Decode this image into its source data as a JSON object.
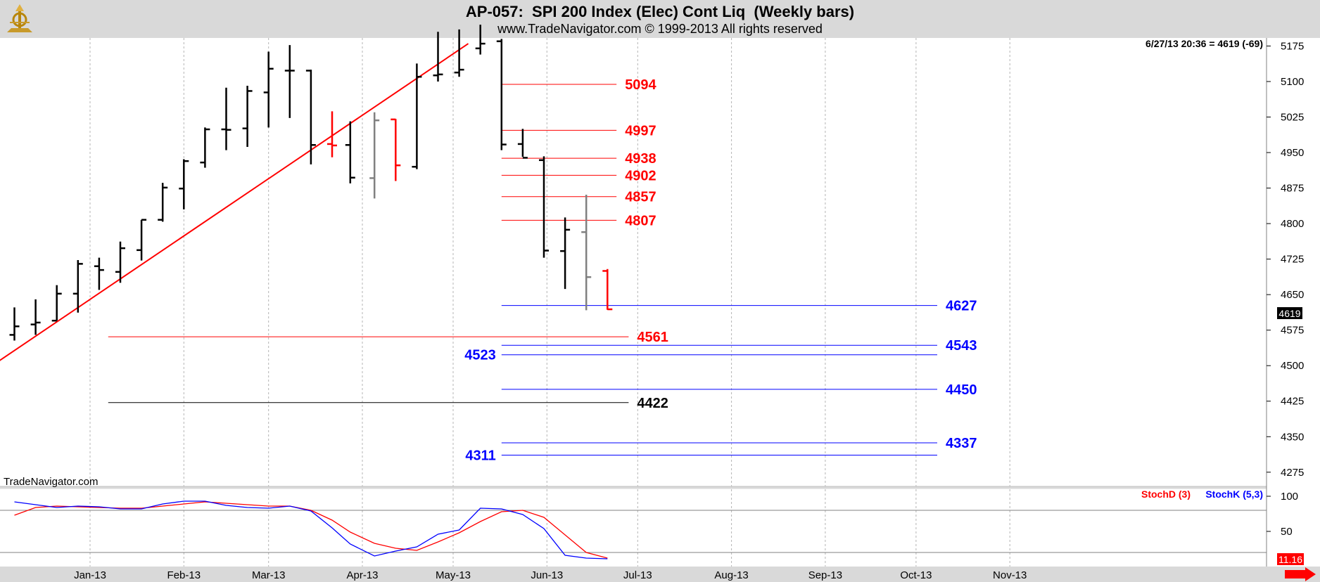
{
  "header": {
    "title": "AP-057:  SPI 200 Index (Elec) Cont Liq  (Weekly bars)",
    "subtitle": "www.TradeNavigator.com © 1999-2013 All rights reserved"
  },
  "watermark": "TradeNavigator.com",
  "last_quote": "6/27/13 20:36 = 4619 (-69)",
  "current_price_tag": "4619",
  "stoch_value_tag": "11.16",
  "legend": {
    "stochd": "StochD (3)",
    "stochk": "StochK (5,3)"
  },
  "colors": {
    "bull_bar": "#000000",
    "neutral_bar": "#808080",
    "bear_bar": "#ff0000",
    "resistance": "#ff0000",
    "support": "#0000ff",
    "neutral_level": "#000000",
    "stochd": "#ff0000",
    "stochk": "#0000ff",
    "background_panel": "#d9d9d9"
  },
  "chart_data": [
    {
      "type": "ohlc",
      "title": "AP-057:  SPI 200 Index (Elec) Cont Liq  (Weekly bars)",
      "x_tick_labels": [
        "Jan-13",
        "Feb-13",
        "Mar-13",
        "Apr-13",
        "May-13",
        "Jun-13",
        "Jul-13",
        "Aug-13",
        "Sep-13",
        "Oct-13",
        "Nov-13"
      ],
      "y_ticks": [
        4275,
        4350,
        4425,
        4500,
        4575,
        4650,
        4725,
        4800,
        4875,
        4950,
        5025,
        5100,
        5175
      ],
      "ylim": [
        4245,
        5192
      ],
      "bars": [
        {
          "date": "2012-12-07",
          "o": 4565,
          "h": 4623,
          "l": 4553,
          "c": 4583,
          "color": "black"
        },
        {
          "date": "2012-12-14",
          "o": 4587,
          "h": 4640,
          "l": 4565,
          "c": 4591,
          "color": "black"
        },
        {
          "date": "2012-12-21",
          "o": 4595,
          "h": 4670,
          "l": 4595,
          "c": 4652,
          "color": "black"
        },
        {
          "date": "2012-12-28",
          "o": 4652,
          "h": 4723,
          "l": 4612,
          "c": 4715,
          "color": "black"
        },
        {
          "date": "2013-01-04",
          "o": 4710,
          "h": 4728,
          "l": 4660,
          "c": 4702,
          "color": "black"
        },
        {
          "date": "2013-01-11",
          "o": 4698,
          "h": 4762,
          "l": 4675,
          "c": 4748,
          "color": "black"
        },
        {
          "date": "2013-01-18",
          "o": 4744,
          "h": 4808,
          "l": 4722,
          "c": 4808,
          "color": "black"
        },
        {
          "date": "2013-01-25",
          "o": 4808,
          "h": 4886,
          "l": 4804,
          "c": 4876,
          "color": "black"
        },
        {
          "date": "2013-02-01",
          "o": 4874,
          "h": 4936,
          "l": 4830,
          "c": 4932,
          "color": "black"
        },
        {
          "date": "2013-02-08",
          "o": 4929,
          "h": 5003,
          "l": 4918,
          "c": 4999,
          "color": "black"
        },
        {
          "date": "2013-02-15",
          "o": 4999,
          "h": 5087,
          "l": 4955,
          "c": 4998,
          "color": "black"
        },
        {
          "date": "2013-02-22",
          "o": 5001,
          "h": 5091,
          "l": 4962,
          "c": 5080,
          "color": "black"
        },
        {
          "date": "2013-03-01",
          "o": 5077,
          "h": 5163,
          "l": 5003,
          "c": 5127,
          "color": "black"
        },
        {
          "date": "2013-03-08",
          "o": 5123,
          "h": 5177,
          "l": 5023,
          "c": 5123,
          "color": "black"
        },
        {
          "date": "2013-03-15",
          "o": 5123,
          "h": 5125,
          "l": 4925,
          "c": 4966,
          "color": "black"
        },
        {
          "date": "2013-03-22",
          "o": 4968,
          "h": 5037,
          "l": 4940,
          "c": 4965,
          "color": "red"
        },
        {
          "date": "2013-03-28",
          "o": 4966,
          "h": 5016,
          "l": 4885,
          "c": 4897,
          "color": "black"
        },
        {
          "date": "2013-04-05",
          "o": 4896,
          "h": 5035,
          "l": 4853,
          "c": 5018,
          "color": "gray"
        },
        {
          "date": "2013-04-12",
          "o": 5020,
          "h": 5021,
          "l": 4890,
          "c": 4923,
          "color": "red"
        },
        {
          "date": "2013-04-19",
          "o": 4920,
          "h": 5138,
          "l": 4915,
          "c": 5110,
          "color": "black"
        },
        {
          "date": "2013-04-26",
          "o": 5113,
          "h": 5205,
          "l": 5100,
          "c": 5115,
          "color": "black"
        },
        {
          "date": "2013-05-03",
          "o": 5119,
          "h": 5210,
          "l": 5110,
          "c": 5125,
          "color": "black"
        },
        {
          "date": "2013-05-10",
          "o": 5170,
          "h": 5220,
          "l": 5157,
          "c": 5180,
          "color": "black"
        },
        {
          "date": "2013-05-17",
          "o": 5185,
          "h": 5190,
          "l": 4955,
          "c": 4967,
          "color": "black"
        },
        {
          "date": "2013-05-24",
          "o": 4968,
          "h": 5000,
          "l": 4941,
          "c": 4939,
          "color": "black"
        },
        {
          "date": "2013-05-31",
          "o": 4934,
          "h": 4942,
          "l": 4728,
          "c": 4743,
          "color": "black"
        },
        {
          "date": "2013-06-07",
          "o": 4742,
          "h": 4813,
          "l": 4662,
          "c": 4787,
          "color": "black"
        },
        {
          "date": "2013-06-14",
          "o": 4782,
          "h": 4861,
          "l": 4617,
          "c": 4687,
          "color": "gray"
        },
        {
          "date": "2013-06-21",
          "o": 4700,
          "h": 4704,
          "l": 4618,
          "c": 4619,
          "color": "red"
        }
      ],
      "trendline": {
        "from": {
          "date": "2012-11-09",
          "value": 4411
        },
        "to": {
          "date": "2013-05-06",
          "value": 5180
        },
        "color": "red"
      },
      "levels": [
        {
          "value": 5094,
          "label": "5094",
          "color": "red",
          "from": "2013-05-17",
          "to": "2013-06-24",
          "label_side": "right"
        },
        {
          "value": 4997,
          "label": "4997",
          "color": "red",
          "from": "2013-05-17",
          "to": "2013-06-24",
          "label_side": "right"
        },
        {
          "value": 4938,
          "label": "4938",
          "color": "red",
          "from": "2013-05-17",
          "to": "2013-06-24",
          "label_side": "right"
        },
        {
          "value": 4902,
          "label": "4902",
          "color": "red",
          "from": "2013-05-17",
          "to": "2013-06-24",
          "label_side": "right"
        },
        {
          "value": 4857,
          "label": "4857",
          "color": "red",
          "from": "2013-05-17",
          "to": "2013-06-24",
          "label_side": "right"
        },
        {
          "value": 4807,
          "label": "4807",
          "color": "red",
          "from": "2013-05-17",
          "to": "2013-06-24",
          "label_side": "right"
        },
        {
          "value": 4627,
          "label": "4627",
          "color": "blue",
          "from": "2013-05-17",
          "to": "2013-10-08",
          "label_side": "right"
        },
        {
          "value": 4561,
          "label": "4561",
          "color": "red",
          "from": "2013-01-07",
          "to": "2013-06-28",
          "label_side": "right"
        },
        {
          "value": 4543,
          "label": "4543",
          "color": "blue",
          "from": "2013-05-17",
          "to": "2013-10-08",
          "label_side": "right"
        },
        {
          "value": 4523,
          "label": "4523",
          "color": "blue",
          "from": "2013-05-17",
          "to": "2013-10-08",
          "label_side": "left"
        },
        {
          "value": 4450,
          "label": "4450",
          "color": "blue",
          "from": "2013-05-17",
          "to": "2013-10-08",
          "label_side": "right"
        },
        {
          "value": 4422,
          "label": "4422",
          "color": "black",
          "from": "2013-01-07",
          "to": "2013-06-28",
          "label_side": "right"
        },
        {
          "value": 4337,
          "label": "4337",
          "color": "blue",
          "from": "2013-05-17",
          "to": "2013-10-08",
          "label_side": "right"
        },
        {
          "value": 4311,
          "label": "4311",
          "color": "blue",
          "from": "2013-05-17",
          "to": "2013-10-08",
          "label_side": "left"
        }
      ]
    },
    {
      "type": "line",
      "title": "StochD (3) / StochK (5,3)",
      "y_ticks": [
        50,
        100
      ],
      "ylim": [
        0,
        112
      ],
      "reference_lines": [
        80,
        20
      ],
      "x": [
        "2012-12-07",
        "2012-12-14",
        "2012-12-21",
        "2012-12-28",
        "2013-01-04",
        "2013-01-11",
        "2013-01-18",
        "2013-01-25",
        "2013-02-01",
        "2013-02-08",
        "2013-02-15",
        "2013-02-22",
        "2013-03-01",
        "2013-03-08",
        "2013-03-15",
        "2013-03-22",
        "2013-03-28",
        "2013-04-05",
        "2013-04-12",
        "2013-04-19",
        "2013-04-26",
        "2013-05-03",
        "2013-05-10",
        "2013-05-17",
        "2013-05-24",
        "2013-05-31",
        "2013-06-07",
        "2013-06-14",
        "2013-06-21"
      ],
      "series": [
        {
          "name": "StochD (3)",
          "color": "red",
          "values": [
            73,
            84,
            86,
            85,
            84,
            83,
            83,
            86,
            89,
            92,
            90,
            88,
            86,
            86,
            80,
            66,
            49,
            33,
            26,
            23,
            35,
            48,
            64,
            78,
            80,
            70,
            45,
            20,
            12
          ]
        },
        {
          "name": "StochK (5,3)",
          "color": "blue",
          "values": [
            92,
            88,
            84,
            86,
            85,
            82,
            82,
            89,
            93,
            93,
            87,
            84,
            83,
            86,
            79,
            55,
            32,
            15,
            22,
            28,
            46,
            52,
            83,
            82,
            74,
            54,
            16,
            12,
            11
          ]
        }
      ]
    }
  ]
}
